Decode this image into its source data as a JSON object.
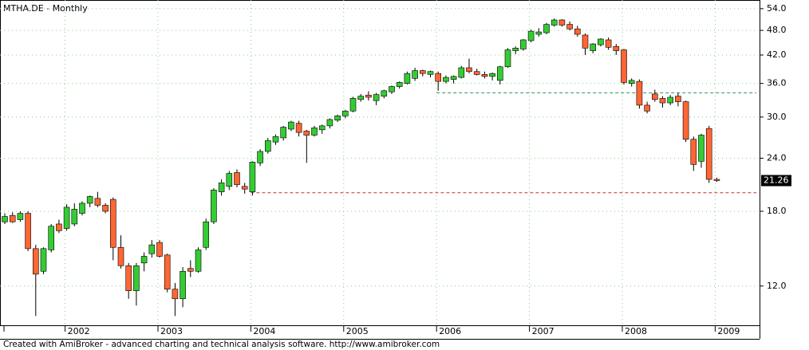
{
  "chart_data": {
    "type": "candlestick",
    "title": "MTHA.DE - Monthly",
    "footer": "Created with AmiBroker - advanced charting and technical analysis software. http://www.amibroker.com",
    "categories": [
      null,
      null,
      null,
      null,
      null,
      null,
      null,
      null,
      "2002",
      null,
      null,
      null,
      null,
      null,
      null,
      null,
      null,
      null,
      null,
      null,
      "2003",
      null,
      null,
      null,
      null,
      null,
      null,
      null,
      null,
      null,
      null,
      null,
      "2004",
      null,
      null,
      null,
      null,
      null,
      null,
      null,
      null,
      null,
      null,
      null,
      "2005",
      null,
      null,
      null,
      null,
      null,
      null,
      null,
      null,
      null,
      null,
      null,
      "2006",
      null,
      null,
      null,
      null,
      null,
      null,
      null,
      null,
      null,
      null,
      null,
      "2007",
      null,
      null,
      null,
      null,
      null,
      null,
      null,
      null,
      null,
      null,
      null,
      "2008",
      null,
      null,
      null,
      null,
      null,
      null,
      null,
      null,
      null,
      null,
      null,
      "2009"
    ],
    "open": [
      17.0,
      17.6,
      17.2,
      17.8,
      14.7,
      13.0,
      14.6,
      16.8,
      16.4,
      16.8,
      17.8,
      18.8,
      19.3,
      18.6,
      19.2,
      14.8,
      13.4,
      11.7,
      13.6,
      14.3,
      15.2,
      14.2,
      11.8,
      11.2,
      13.2,
      13.0,
      14.8,
      17.0,
      20.0,
      20.6,
      22.2,
      20.6,
      20.0,
      23.4,
      24.9,
      26.2,
      26.8,
      28.1,
      29.0,
      27.8,
      27.2,
      28.0,
      28.6,
      29.5,
      30.2,
      31.0,
      33.0,
      33.8,
      32.8,
      33.6,
      34.4,
      35.4,
      36.0,
      37.0,
      38.6,
      37.8,
      38.0,
      36.4,
      36.8,
      37.2,
      39.2,
      38.4,
      37.8,
      37.4,
      36.6,
      39.4,
      43.0,
      43.4,
      45.4,
      47.0,
      47.4,
      49.4,
      50.8,
      49.6,
      48.4,
      46.8,
      43.0,
      44.4,
      45.6,
      44.0,
      43.2,
      36.0,
      36.4,
      32.0,
      34.0,
      33.2,
      32.4,
      33.6,
      32.6,
      26.6,
      23.6,
      28.2,
      21.4
    ],
    "high": [
      17.8,
      17.9,
      18.0,
      18.0,
      15.0,
      14.8,
      16.8,
      17.2,
      18.7,
      18.8,
      19.0,
      19.6,
      20.0,
      18.8,
      19.4,
      15.8,
      13.6,
      13.6,
      14.4,
      15.4,
      15.4,
      14.3,
      12.2,
      13.3,
      13.8,
      14.8,
      17.3,
      20.4,
      21.4,
      22.4,
      22.6,
      21.0,
      23.6,
      25.2,
      26.8,
      27.3,
      28.6,
      29.4,
      29.4,
      28.0,
      28.6,
      28.8,
      29.8,
      30.4,
      31.2,
      33.5,
      34.0,
      34.5,
      34.2,
      34.8,
      35.6,
      36.4,
      38.4,
      39.2,
      38.8,
      38.6,
      38.4,
      37.6,
      37.6,
      39.6,
      41.2,
      39.0,
      38.4,
      38.2,
      39.6,
      43.6,
      44.0,
      45.8,
      48.2,
      48.6,
      50.0,
      51.2,
      51.0,
      50.4,
      49.2,
      47.2,
      44.8,
      46.0,
      46.2,
      44.6,
      43.4,
      37.0,
      36.8,
      32.6,
      34.8,
      33.6,
      33.8,
      34.2,
      32.8,
      27.0,
      27.4,
      28.6,
      21.6
    ],
    "low": [
      16.8,
      16.9,
      17.0,
      14.5,
      10.2,
      12.8,
      14.4,
      16.0,
      16.2,
      16.6,
      17.6,
      18.4,
      18.4,
      17.8,
      13.8,
      13.2,
      11.2,
      10.8,
      13.0,
      14.0,
      14.0,
      11.6,
      10.2,
      10.7,
      12.6,
      12.9,
      14.6,
      16.8,
      19.6,
      20.2,
      20.5,
      19.8,
      19.6,
      23.0,
      24.6,
      25.8,
      26.4,
      27.8,
      27.0,
      23.4,
      27.0,
      27.4,
      28.2,
      29.2,
      29.8,
      30.8,
      32.6,
      32.8,
      32.0,
      33.2,
      34.0,
      35.0,
      35.8,
      36.5,
      37.4,
      37.2,
      34.6,
      36.0,
      36.0,
      37.0,
      38.0,
      37.6,
      37.0,
      36.6,
      35.8,
      39.2,
      42.2,
      43.0,
      45.0,
      46.4,
      47.0,
      49.0,
      49.0,
      48.0,
      46.4,
      42.0,
      42.4,
      44.0,
      43.2,
      42.0,
      35.8,
      35.4,
      31.4,
      30.6,
      32.6,
      31.6,
      32.0,
      31.8,
      26.2,
      22.4,
      22.8,
      21.0,
      21.1
    ],
    "close": [
      17.5,
      17.0,
      17.8,
      14.7,
      12.8,
      14.7,
      16.6,
      16.2,
      18.4,
      18.2,
      18.8,
      19.5,
      18.6,
      18.0,
      14.8,
      13.4,
      11.7,
      13.4,
      14.1,
      15.0,
      14.1,
      11.8,
      11.2,
      13.0,
      13.0,
      14.6,
      17.0,
      20.2,
      21.0,
      22.1,
      20.8,
      20.3,
      23.5,
      24.9,
      26.4,
      27.0,
      28.4,
      29.2,
      27.6,
      27.2,
      28.3,
      28.6,
      29.6,
      30.2,
      31.0,
      33.2,
      33.6,
      33.4,
      33.9,
      34.6,
      35.4,
      36.2,
      38.0,
      38.6,
      38.0,
      38.4,
      36.4,
      37.2,
      37.4,
      39.2,
      38.4,
      37.8,
      37.4,
      38.0,
      39.4,
      43.2,
      43.6,
      45.6,
      47.8,
      47.6,
      49.6,
      50.8,
      49.4,
      48.4,
      47.0,
      43.6,
      44.6,
      45.8,
      43.8,
      43.0,
      36.2,
      36.6,
      32.0,
      31.0,
      33.0,
      32.4,
      33.4,
      32.6,
      26.6,
      23.2,
      27.2,
      21.4,
      21.26
    ],
    "up_color": "#33cc33",
    "down_color": "#ff6633",
    "log_scale": true,
    "ylim": [
      9.7,
      56.6
    ],
    "yticks": [
      {
        "value": 12,
        "label": "12.0"
      },
      {
        "value": 18,
        "label": "18.0"
      },
      {
        "value": 24,
        "label": "24.0"
      },
      {
        "value": 30,
        "label": "30.0"
      },
      {
        "value": 36,
        "label": "36.0"
      },
      {
        "value": 42,
        "label": "42.0"
      },
      {
        "value": 48,
        "label": "48.0"
      },
      {
        "value": 54,
        "label": "54.0"
      }
    ],
    "grid": true,
    "grid_color": "#88cc88",
    "hlines": [
      {
        "value": 34.2,
        "color": "#339966",
        "from": "2006"
      },
      {
        "value": 19.9,
        "color": "#cc3322",
        "from": "2004"
      }
    ]
  }
}
